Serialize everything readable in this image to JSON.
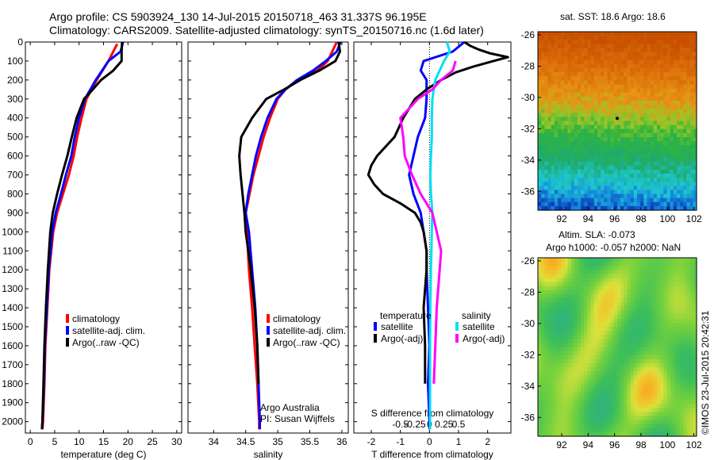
{
  "header": {
    "title_line1": "Argo profile: CS 5903924_130 14-Jul-2015 20150718_463 31.337S 96.195E",
    "title_line2": "Climatology: CARS2009. Satellite-adjusted climatology: synTS_20150716.nc (1.6d later)"
  },
  "colors": {
    "climatology": "#ff0000",
    "satellite": "#0000ff",
    "argo": "#000000",
    "sal_satellite": "#00e0f0",
    "sal_argo": "#ff00ff"
  },
  "chart_data": [
    {
      "id": "temperature",
      "type": "line",
      "xlabel": "temperature (deg C)",
      "xlim": [
        -1,
        31
      ],
      "xticks": [
        0,
        5,
        10,
        15,
        20,
        25,
        30
      ],
      "xtick_labels": [
        "0",
        "5",
        "10",
        "15",
        "20",
        "25",
        "30"
      ],
      "ylim": [
        2060,
        0
      ],
      "yticks": [
        0,
        100,
        200,
        300,
        400,
        500,
        600,
        700,
        800,
        900,
        1000,
        1100,
        1200,
        1300,
        1400,
        1500,
        1600,
        1700,
        1800,
        1900,
        2000
      ],
      "ytick_labels": [
        "0",
        "100",
        "200",
        "300",
        "400",
        "500",
        "600",
        "700",
        "800",
        "900",
        "1000",
        "1100",
        "1200",
        "1300",
        "1400",
        "1500",
        "1600",
        "1700",
        "1800",
        "1900",
        "2000"
      ],
      "legend": [
        "climatology",
        "satellite-adj. clim.",
        "Argo(..raw -QC)"
      ],
      "series": [
        {
          "name": "climatology",
          "color": "#ff0000",
          "depth": [
            10,
            100,
            200,
            300,
            400,
            500,
            600,
            700,
            800,
            900,
            1000,
            1200,
            1400,
            1600,
            1800,
            2000,
            2040
          ],
          "values": [
            17.8,
            16.0,
            13.6,
            11.5,
            10.5,
            9.6,
            8.9,
            7.9,
            6.7,
            5.5,
            4.7,
            3.9,
            3.5,
            3.1,
            2.9,
            2.6,
            2.5
          ]
        },
        {
          "name": "satellite-adj. clim.",
          "color": "#0000ff",
          "depth": [
            0,
            50,
            100,
            200,
            300,
            400,
            500,
            600,
            700,
            800,
            900,
            1000,
            1200,
            1400,
            1600,
            1800,
            2000,
            2040
          ],
          "values": [
            19.0,
            18.5,
            16.0,
            13.4,
            11.2,
            10.0,
            9.1,
            8.4,
            7.3,
            6.3,
            5.2,
            4.5,
            3.8,
            3.4,
            3.0,
            2.8,
            2.5,
            2.4
          ]
        },
        {
          "name": "Argo(..raw -QC)",
          "color": "#000000",
          "depth": [
            0,
            50,
            100,
            150,
            200,
            250,
            300,
            400,
            500,
            600,
            700,
            800,
            900,
            1000,
            1200,
            1400,
            1600,
            1800,
            2000,
            2040
          ],
          "values": [
            18.8,
            18.7,
            18.7,
            17.0,
            14.5,
            12.8,
            11.0,
            9.5,
            8.5,
            7.6,
            6.5,
            5.5,
            4.6,
            4.1,
            3.6,
            3.2,
            2.9,
            2.7,
            2.5,
            2.4
          ]
        }
      ]
    },
    {
      "id": "salinity",
      "type": "line",
      "xlabel": "salinity",
      "xlim": [
        33.6,
        36.1
      ],
      "xticks": [
        34,
        34.5,
        35,
        35.5,
        36
      ],
      "xtick_labels": [
        "34",
        "34.5",
        "35",
        "35.5",
        "36"
      ],
      "ylim": [
        2060,
        0
      ],
      "legend": [
        "climatology",
        "satellite-adj. clim.",
        "Argo(..raw -QC)"
      ],
      "annotation": [
        "Argo Australia",
        "PI: Susan Wijffels"
      ],
      "series": [
        {
          "name": "climatology",
          "color": "#ff0000",
          "depth": [
            0,
            50,
            100,
            150,
            200,
            250,
            300,
            400,
            500,
            600,
            700,
            800,
            900,
            1000,
            1200,
            1400,
            1600,
            1800,
            2000,
            2040
          ],
          "values": [
            35.92,
            35.85,
            35.78,
            35.62,
            35.32,
            35.12,
            35.0,
            34.88,
            34.78,
            34.7,
            34.62,
            34.56,
            34.5,
            34.52,
            34.55,
            34.6,
            34.64,
            34.68,
            34.71,
            34.71
          ]
        },
        {
          "name": "satellite-adj. clim.",
          "color": "#0000ff",
          "depth": [
            0,
            50,
            100,
            150,
            200,
            250,
            300,
            400,
            500,
            600,
            700,
            800,
            900,
            1000,
            1200,
            1400,
            1600,
            1800,
            2000,
            2040
          ],
          "values": [
            35.98,
            35.92,
            35.75,
            35.55,
            35.3,
            35.12,
            34.98,
            34.84,
            34.74,
            34.66,
            34.6,
            34.54,
            34.5,
            34.55,
            34.6,
            34.65,
            34.68,
            34.7,
            34.72,
            34.72
          ]
        },
        {
          "name": "Argo(..raw -QC)",
          "color": "#000000",
          "depth": [
            0,
            50,
            100,
            150,
            200,
            250,
            300,
            400,
            500,
            600,
            700,
            800,
            900,
            1000,
            1200,
            1400,
            1600,
            1800
          ],
          "values": [
            35.95,
            35.97,
            35.9,
            35.65,
            35.35,
            35.1,
            34.82,
            34.6,
            34.43,
            34.4,
            34.42,
            34.45,
            34.48,
            34.5,
            34.58,
            34.64,
            34.68,
            34.7
          ]
        }
      ]
    },
    {
      "id": "difference",
      "type": "line",
      "xlabel": "T difference from climatology",
      "xlabel_top": "S difference from climatology",
      "xlim": [
        -2.6,
        2.8
      ],
      "xticks": [
        -2,
        -1,
        0,
        1,
        2
      ],
      "xtick_labels": [
        "-2",
        "-1",
        "0",
        "1",
        "2"
      ],
      "xticks_top": [
        -0.5,
        -0.25,
        0,
        0.25,
        0.5
      ],
      "xtick_labels_top": [
        "-0.5",
        "-0.25",
        "0",
        "0.25",
        "0.5"
      ],
      "ylim": [
        2060,
        0
      ],
      "legend_headings": [
        "temperature",
        "salinity"
      ],
      "legend": [
        "satellite",
        "Argo(-adj)",
        "satellite",
        "Argo(-adj)"
      ],
      "series": [
        {
          "name": "temperature satellite",
          "color": "#0000ff",
          "depth": [
            0,
            50,
            100,
            150,
            200,
            300,
            400,
            500,
            600,
            700,
            800,
            900,
            1000,
            1100,
            1200,
            1400,
            1600,
            1800,
            2000,
            2040
          ],
          "values": [
            1.2,
            0.8,
            -0.2,
            -0.3,
            -0.1,
            -0.1,
            -0.15,
            -0.4,
            -0.55,
            -0.7,
            -0.55,
            -0.3,
            -0.2,
            -0.1,
            -0.1,
            -0.05,
            0,
            -0.05,
            0,
            0
          ]
        },
        {
          "name": "temperature Argo(-adj)",
          "color": "#000000",
          "depth": [
            0,
            20,
            40,
            60,
            80,
            100,
            130,
            160,
            200,
            250,
            300,
            400,
            500,
            600,
            650,
            700,
            750,
            800,
            850,
            900,
            950,
            1000,
            1100,
            1200,
            1400,
            1600,
            1800
          ],
          "values": [
            1.2,
            1.4,
            1.7,
            2.1,
            2.7,
            2.2,
            1.5,
            0.9,
            0.4,
            -0.1,
            -0.5,
            -0.9,
            -1.2,
            -1.8,
            -2.0,
            -2.1,
            -1.9,
            -1.6,
            -1.0,
            -0.5,
            -0.3,
            -0.2,
            -0.1,
            -0.1,
            -0.2,
            -0.15,
            -0.15
          ]
        },
        {
          "name": "salinity satellite",
          "color": "#00e0f0",
          "depth": [
            0,
            50,
            100,
            200,
            300,
            400,
            500,
            600,
            700,
            800,
            900,
            1000,
            1200,
            1400,
            1600,
            1800,
            2000,
            2040
          ],
          "values": [
            0.6,
            0.7,
            0.5,
            0.2,
            0.1,
            0.08,
            0.08,
            0.05,
            0.03,
            0.05,
            0.1,
            0.08,
            0.05,
            0.03,
            0.02,
            0.02,
            0.02,
            0.02
          ]
        },
        {
          "name": "salinity Argo(-adj)",
          "color": "#ff00ff",
          "depth": [
            100,
            150,
            200,
            250,
            300,
            400,
            500,
            600,
            700,
            800,
            900,
            1000,
            1100,
            1200,
            1400,
            1600,
            1800
          ],
          "values": [
            0.9,
            0.8,
            0.4,
            0.1,
            -0.4,
            -1.0,
            -0.9,
            -0.85,
            -0.6,
            -0.3,
            0.1,
            0.25,
            0.4,
            0.35,
            0.25,
            0.2,
            0.15
          ]
        }
      ]
    }
  ],
  "maps": [
    {
      "id": "sst-map",
      "title": "sat. SST: 18.6 Argo: 18.6",
      "xlim": [
        90.2,
        102.2
      ],
      "ylim": [
        -37.2,
        -25.8
      ],
      "xticks": [
        92,
        94,
        96,
        98,
        100,
        102
      ],
      "xtick_labels": [
        "92",
        "94",
        "96",
        "98",
        "100",
        "102"
      ],
      "yticks": [
        -26,
        -28,
        -30,
        -32,
        -34,
        -36
      ],
      "ytick_labels": [
        "-26",
        "-28",
        "-30",
        "-32",
        "-34",
        "-36"
      ],
      "profile_lon": 96.195,
      "profile_lat": -31.337
    },
    {
      "id": "sla-map",
      "title_line1": "Altim. SLA: -0.073",
      "title_line2": "Argo h1000: -0.057 h2000: NaN",
      "xlim": [
        90.2,
        102.2
      ],
      "ylim": [
        -37.2,
        -25.8
      ],
      "xticks": [
        92,
        94,
        96,
        98,
        100,
        102
      ],
      "xtick_labels": [
        "92",
        "94",
        "96",
        "98",
        "100",
        "102"
      ],
      "yticks": [
        -26,
        -28,
        -30,
        -32,
        -34,
        -36
      ],
      "ytick_labels": [
        "-26",
        "-28",
        "-30",
        "-32",
        "-34",
        "-36"
      ]
    }
  ],
  "footer": {
    "credit": "©IMOS 23-Jul-2015 20:42:31"
  }
}
